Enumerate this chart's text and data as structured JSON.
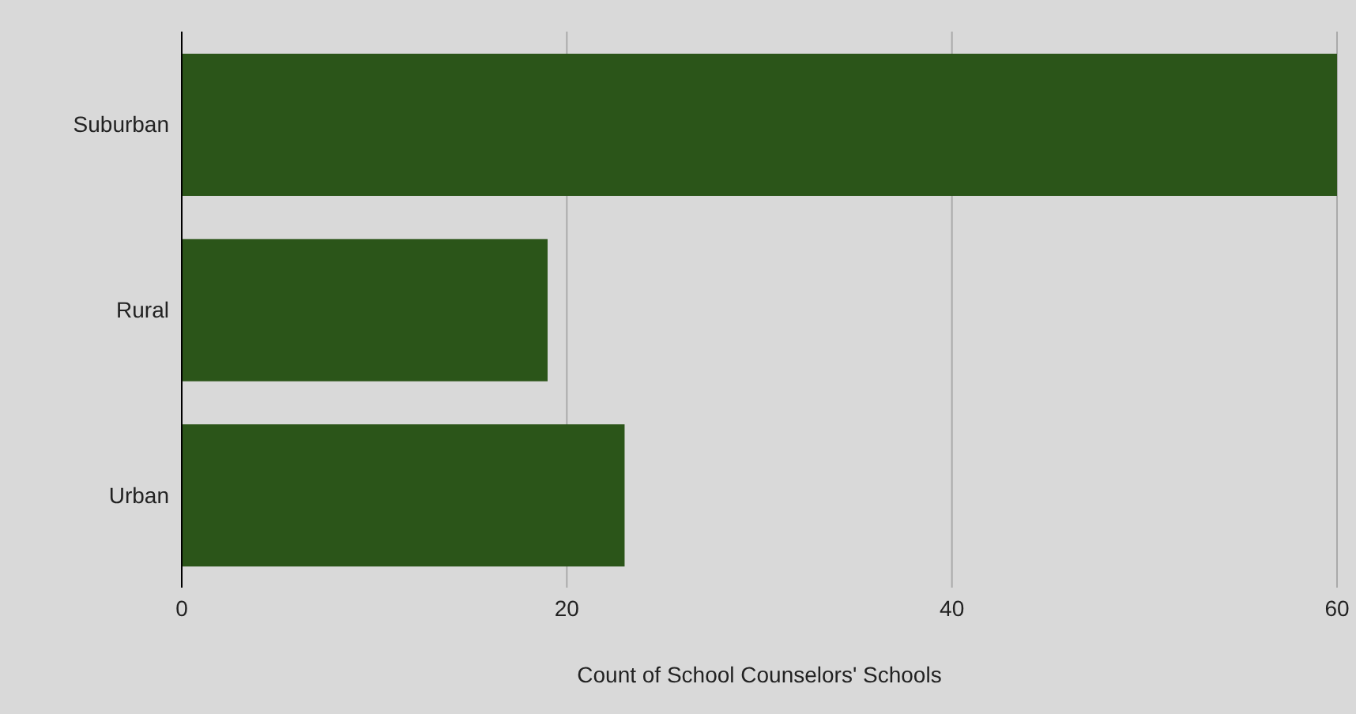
{
  "chart_data": {
    "type": "bar",
    "orientation": "horizontal",
    "categories": [
      "Suburban",
      "Rural",
      "Urban"
    ],
    "values": [
      60,
      19,
      23
    ],
    "color": "#2b5519",
    "xlim": [
      0,
      60
    ],
    "xticks": [
      0,
      20,
      40,
      60
    ],
    "grid": "x",
    "xlabel": "Count of School Counselors' Schools"
  }
}
